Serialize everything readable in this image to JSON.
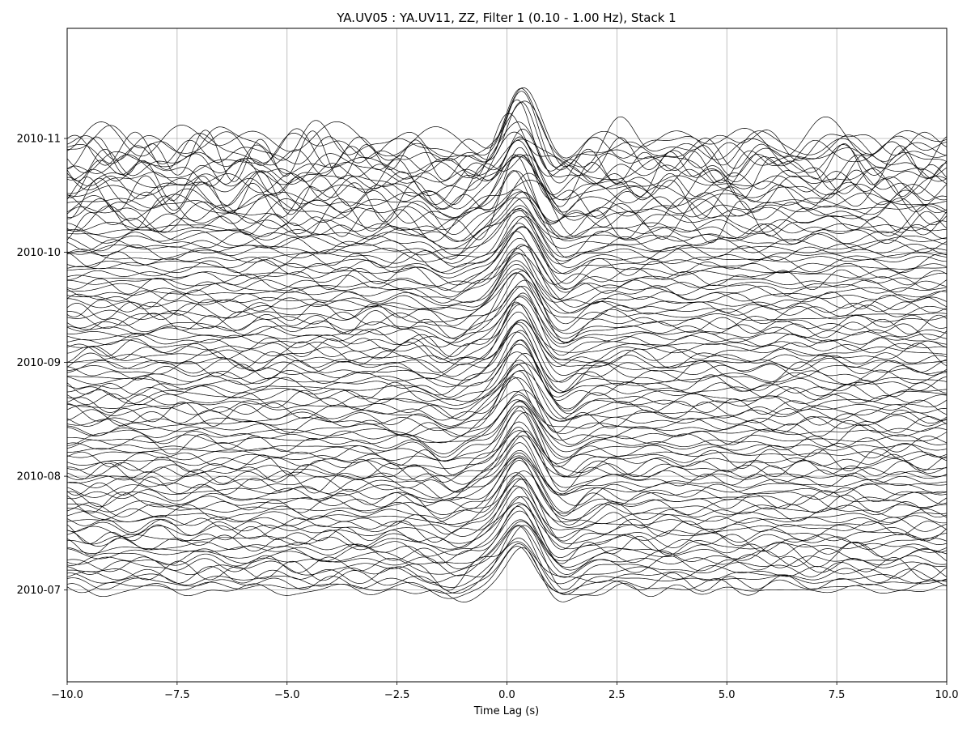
{
  "chart_data": {
    "type": "line",
    "title": "YA.UV05 : YA.UV11, ZZ, Filter 1 (0.10 - 1.00 Hz), Stack 1",
    "xlabel": "Time Lag (s)",
    "ylabel": "",
    "xlim": [
      -10,
      10
    ],
    "ylim_dates": [
      "2010-06-06",
      "2010-12-01"
    ],
    "x_ticks": [
      -10,
      -7.5,
      -5,
      -2.5,
      0,
      2.5,
      5,
      7.5,
      10
    ],
    "x_tick_labels": [
      "−10.0",
      "−7.5",
      "−5.0",
      "−2.5",
      "0.0",
      "2.5",
      "5.0",
      "7.5",
      "10.0"
    ],
    "y_ticks": [
      "2010-07-01",
      "2010-08-01",
      "2010-09-01",
      "2010-10-01",
      "2010-11-01"
    ],
    "y_tick_labels": [
      "2010-07",
      "2010-08",
      "2010-09",
      "2010-10",
      "2010-11"
    ],
    "grid": true,
    "trace_dates_range": [
      "2010-07-01",
      "2010-11-01"
    ],
    "trace_count": 124,
    "trace_color": "#000000"
  }
}
